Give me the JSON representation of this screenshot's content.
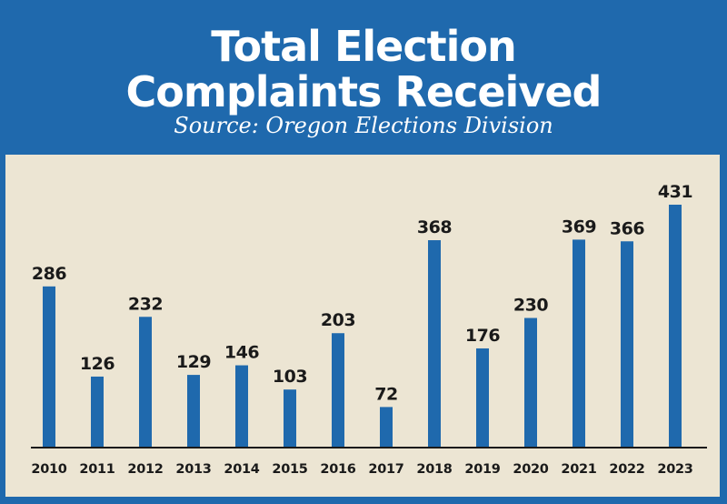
{
  "header": {
    "title_line1": "Total Election",
    "title_line2": "Complaints Received",
    "subtitle": "Source: Oregon Elections Division"
  },
  "colors": {
    "header_background": "#1f69ad",
    "panel_background": "#ece5d3",
    "bar": "#1f69ad",
    "axis": "#1a1a1a"
  },
  "chart_data": {
    "type": "bar",
    "title": "Total Election Complaints Received",
    "subtitle": "Source: Oregon Elections Division",
    "xlabel": "",
    "ylabel": "",
    "categories": [
      "2010",
      "2011",
      "2012",
      "2013",
      "2014",
      "2015",
      "2016",
      "2017",
      "2018",
      "2019",
      "2020",
      "2021",
      "2022",
      "2023"
    ],
    "values": [
      286,
      126,
      232,
      129,
      146,
      103,
      203,
      72,
      368,
      176,
      230,
      369,
      366,
      431
    ],
    "data_labels": [
      "286",
      "126",
      "232",
      "129",
      "146",
      "103",
      "203",
      "72",
      "368",
      "176",
      "230",
      "369",
      "366",
      "431"
    ],
    "ylim": [
      0,
      431
    ],
    "grid": false,
    "legend": "none"
  }
}
